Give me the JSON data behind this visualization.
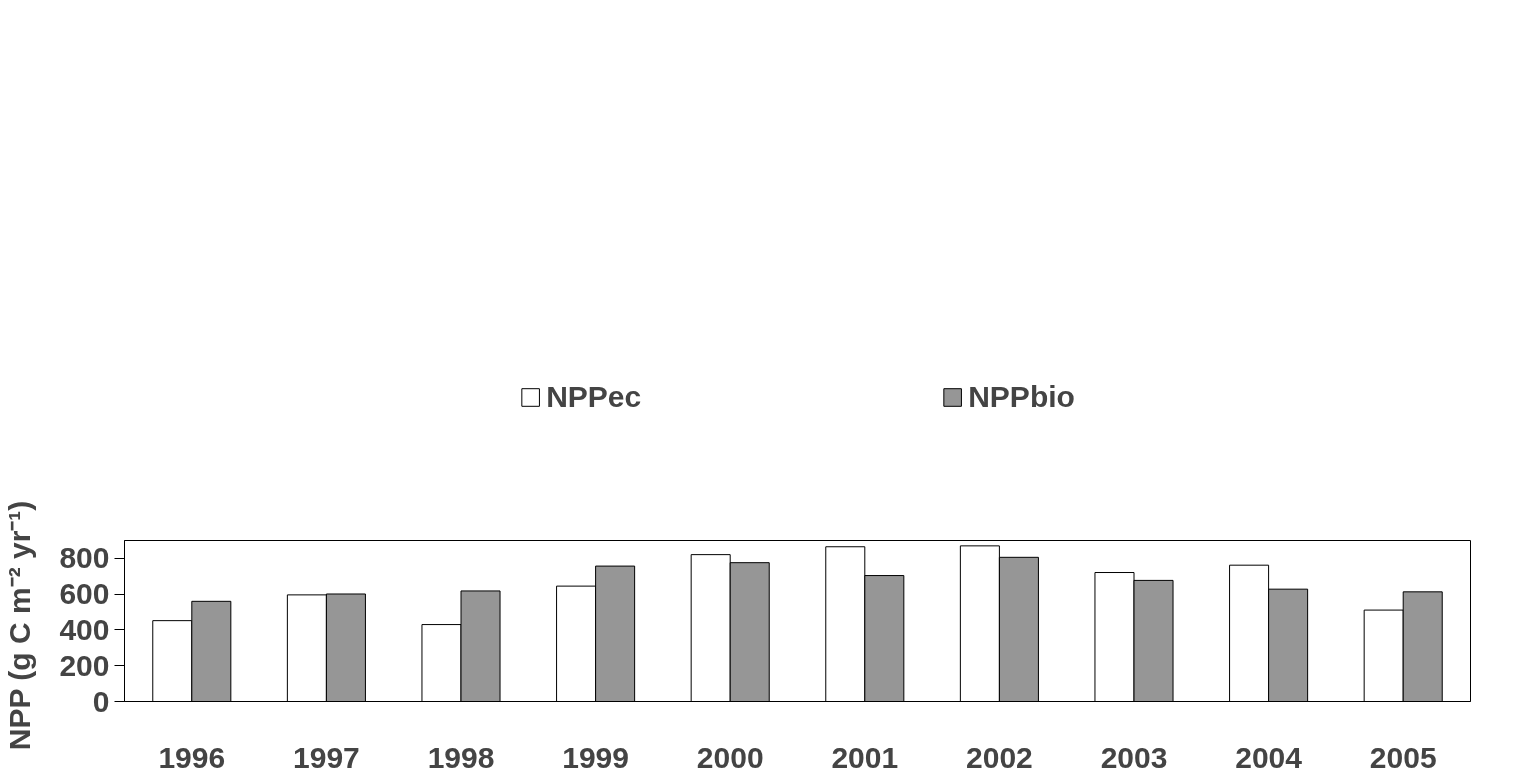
{
  "chart_data": {
    "type": "bar",
    "ylabel": "NPP  (g C m⁻² yr⁻¹)",
    "categories": [
      "1996",
      "1997",
      "1998",
      "1999",
      "2000",
      "2001",
      "2002",
      "2003",
      "2004",
      "2005"
    ],
    "series": [
      {
        "name": "NPPec",
        "color": "#ffffff",
        "values": [
          452,
          596,
          430,
          645,
          821,
          865,
          870,
          721,
          762,
          511
        ]
      },
      {
        "name": "NPPbio",
        "color": "#969696",
        "values": [
          560,
          601,
          618,
          757,
          776,
          704,
          806,
          677,
          628,
          613
        ]
      }
    ],
    "ylim": [
      0,
      900
    ],
    "yticks": [
      0,
      200,
      400,
      600,
      800
    ],
    "grid": false,
    "legend": "top"
  }
}
